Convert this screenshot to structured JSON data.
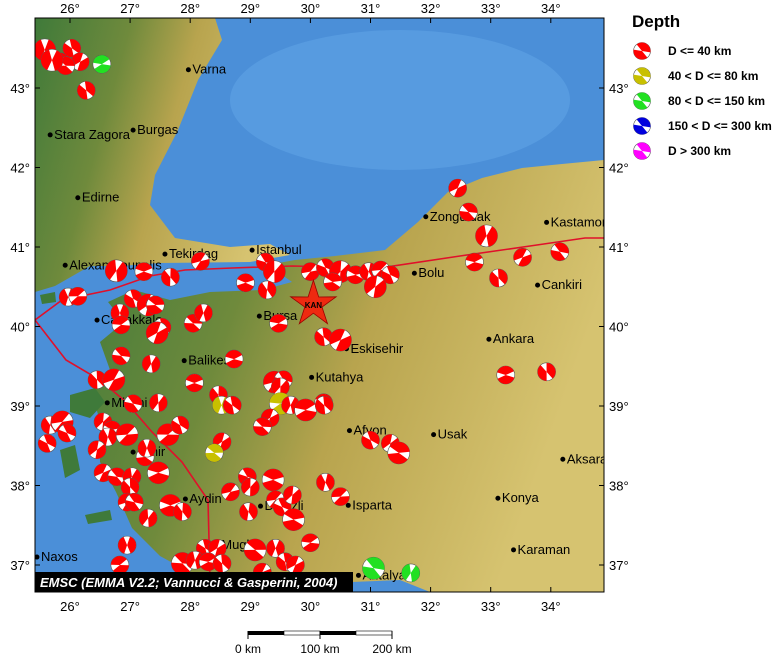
{
  "map": {
    "lon_ticks": [
      26,
      27,
      28,
      29,
      30,
      31,
      32,
      33,
      34
    ],
    "lat_ticks": [
      37,
      38,
      39,
      40,
      41,
      42,
      43
    ],
    "degree_symbol": "°",
    "credit": "EMSC (EMMA V2.2; Vannucci & Gasperini, 2004)",
    "epicenter": {
      "label": "KAN",
      "lon": 30.05,
      "lat": 40.28
    },
    "colors": {
      "sea": "#4b8fd8",
      "land_low": "#3f7a3a",
      "land_high": "#c9b660",
      "fault": "#e0102a"
    },
    "cities": [
      {
        "name": "Varna",
        "lon": 27.97,
        "lat": 43.23
      },
      {
        "name": "Burgas",
        "lon": 27.05,
        "lat": 42.47
      },
      {
        "name": "Stara Zagora",
        "lon": 25.67,
        "lat": 42.41
      },
      {
        "name": "Edirne",
        "lon": 26.13,
        "lat": 41.62
      },
      {
        "name": "Tekirdag",
        "lon": 27.58,
        "lat": 40.91
      },
      {
        "name": "Istanbul",
        "lon": 29.03,
        "lat": 40.96
      },
      {
        "name": "Alexandroupolis",
        "lon": 25.92,
        "lat": 40.77
      },
      {
        "name": "Canakkale",
        "lon": 26.45,
        "lat": 40.08
      },
      {
        "name": "Bursa",
        "lon": 29.15,
        "lat": 40.13
      },
      {
        "name": "Balikesir",
        "lon": 27.9,
        "lat": 39.57
      },
      {
        "name": "Kutahya",
        "lon": 30.02,
        "lat": 39.36
      },
      {
        "name": "Eskisehir",
        "lon": 30.6,
        "lat": 39.72
      },
      {
        "name": "Bolu",
        "lon": 31.73,
        "lat": 40.67
      },
      {
        "name": "Zonguldak",
        "lon": 31.92,
        "lat": 41.38
      },
      {
        "name": "Kastamonu",
        "lon": 33.93,
        "lat": 41.31
      },
      {
        "name": "Cankiri",
        "lon": 33.78,
        "lat": 40.52
      },
      {
        "name": "Ankara",
        "lon": 32.97,
        "lat": 39.84
      },
      {
        "name": "Mitilini",
        "lon": 26.62,
        "lat": 39.04
      },
      {
        "name": "Izmir",
        "lon": 27.05,
        "lat": 38.42
      },
      {
        "name": "Afyon",
        "lon": 30.65,
        "lat": 38.69
      },
      {
        "name": "Usak",
        "lon": 32.05,
        "lat": 38.64
      },
      {
        "name": "Konya",
        "lon": 33.12,
        "lat": 37.84
      },
      {
        "name": "Aksaray",
        "lon": 34.2,
        "lat": 38.33
      },
      {
        "name": "Aydin",
        "lon": 27.92,
        "lat": 37.83
      },
      {
        "name": "Denizli",
        "lon": 29.17,
        "lat": 37.74
      },
      {
        "name": "Isparta",
        "lon": 30.63,
        "lat": 37.75
      },
      {
        "name": "Mugla",
        "lon": 28.45,
        "lat": 37.25
      },
      {
        "name": "Karaman",
        "lon": 33.38,
        "lat": 37.19
      },
      {
        "name": "Antalya",
        "lon": 30.8,
        "lat": 36.87
      },
      {
        "name": "Naxos",
        "lon": 25.45,
        "lat": 37.1
      }
    ],
    "events": [
      [
        25.58,
        43.48,
        0
      ],
      [
        25.83,
        43.33,
        0
      ],
      [
        26.03,
        43.5,
        0
      ],
      [
        26.17,
        43.33,
        0
      ],
      [
        25.93,
        43.28,
        0
      ],
      [
        25.7,
        43.35,
        0
      ],
      [
        26.53,
        43.3,
        2
      ],
      [
        26.27,
        42.97,
        0
      ],
      [
        32.45,
        41.74,
        0
      ],
      [
        32.63,
        41.44,
        0
      ],
      [
        32.93,
        41.14,
        0
      ],
      [
        32.73,
        40.81,
        0
      ],
      [
        33.13,
        40.61,
        0
      ],
      [
        33.53,
        40.87,
        0
      ],
      [
        34.15,
        40.94,
        0
      ],
      [
        26.77,
        40.7,
        0
      ],
      [
        27.23,
        40.69,
        0
      ],
      [
        27.67,
        40.62,
        0
      ],
      [
        28.17,
        40.82,
        0
      ],
      [
        29.25,
        40.81,
        0
      ],
      [
        29.4,
        40.69,
        0
      ],
      [
        28.92,
        40.55,
        0
      ],
      [
        29.28,
        40.46,
        0
      ],
      [
        30.0,
        40.69,
        0
      ],
      [
        30.25,
        40.74,
        0
      ],
      [
        30.5,
        40.69,
        0
      ],
      [
        30.75,
        40.65,
        0
      ],
      [
        30.97,
        40.69,
        0
      ],
      [
        31.17,
        40.71,
        0
      ],
      [
        31.33,
        40.65,
        0
      ],
      [
        31.08,
        40.5,
        0
      ],
      [
        30.37,
        40.56,
        0
      ],
      [
        25.97,
        40.37,
        0
      ],
      [
        26.13,
        40.38,
        0
      ],
      [
        27.05,
        40.35,
        0
      ],
      [
        27.3,
        40.27,
        0
      ],
      [
        27.42,
        40.27,
        0
      ],
      [
        26.83,
        40.17,
        0
      ],
      [
        26.85,
        40.02,
        0
      ],
      [
        27.53,
        39.99,
        0
      ],
      [
        27.45,
        39.92,
        0
      ],
      [
        28.05,
        40.04,
        0
      ],
      [
        28.22,
        40.17,
        0
      ],
      [
        29.47,
        40.04,
        0
      ],
      [
        30.22,
        39.87,
        0
      ],
      [
        30.5,
        39.83,
        0
      ],
      [
        26.85,
        39.63,
        0
      ],
      [
        27.35,
        39.53,
        0
      ],
      [
        28.73,
        39.59,
        0
      ],
      [
        26.45,
        39.33,
        0
      ],
      [
        26.73,
        39.33,
        0
      ],
      [
        27.05,
        39.03,
        0
      ],
      [
        27.47,
        39.04,
        0
      ],
      [
        28.07,
        39.29,
        0
      ],
      [
        28.47,
        39.14,
        0
      ],
      [
        29.4,
        39.3,
        0
      ],
      [
        29.55,
        39.33,
        0
      ],
      [
        29.5,
        39.24,
        0
      ],
      [
        30.22,
        39.04,
        0
      ],
      [
        25.67,
        38.76,
        0
      ],
      [
        25.87,
        38.8,
        0
      ],
      [
        25.95,
        38.66,
        0
      ],
      [
        26.55,
        38.8,
        0
      ],
      [
        26.7,
        38.7,
        0
      ],
      [
        26.63,
        38.61,
        0
      ],
      [
        26.95,
        38.64,
        0
      ],
      [
        25.62,
        38.53,
        0
      ],
      [
        26.45,
        38.45,
        0
      ],
      [
        27.25,
        38.36,
        0
      ],
      [
        27.28,
        38.47,
        0
      ],
      [
        27.63,
        38.64,
        0
      ],
      [
        27.83,
        38.76,
        0
      ],
      [
        28.53,
        38.55,
        0
      ],
      [
        28.4,
        38.41,
        1
      ],
      [
        28.52,
        39.01,
        1
      ],
      [
        29.5,
        39.03,
        1
      ],
      [
        28.7,
        39.01,
        0
      ],
      [
        29.33,
        38.85,
        0
      ],
      [
        29.2,
        38.74,
        0
      ],
      [
        29.67,
        39.01,
        0
      ],
      [
        29.92,
        38.95,
        0
      ],
      [
        30.23,
        39.01,
        0
      ],
      [
        26.55,
        38.16,
        0
      ],
      [
        26.78,
        38.11,
        0
      ],
      [
        27.03,
        38.11,
        0
      ],
      [
        27.47,
        38.16,
        0
      ],
      [
        27.0,
        37.98,
        0
      ],
      [
        26.95,
        37.79,
        0
      ],
      [
        27.07,
        37.79,
        0
      ],
      [
        27.3,
        37.59,
        0
      ],
      [
        27.67,
        37.75,
        0
      ],
      [
        27.87,
        37.67,
        0
      ],
      [
        28.67,
        37.92,
        0
      ],
      [
        28.95,
        38.11,
        0
      ],
      [
        29.0,
        37.98,
        0
      ],
      [
        29.38,
        38.07,
        0
      ],
      [
        28.97,
        37.67,
        0
      ],
      [
        29.42,
        37.82,
        0
      ],
      [
        29.53,
        37.73,
        0
      ],
      [
        29.7,
        37.88,
        0
      ],
      [
        29.72,
        37.57,
        0
      ],
      [
        30.25,
        38.04,
        0
      ],
      [
        30.5,
        37.86,
        0
      ],
      [
        31.0,
        38.57,
        0
      ],
      [
        31.33,
        38.53,
        0
      ],
      [
        31.47,
        38.41,
        0
      ],
      [
        26.95,
        37.25,
        0
      ],
      [
        26.83,
        37.0,
        0
      ],
      [
        28.25,
        37.21,
        0
      ],
      [
        28.45,
        37.21,
        0
      ],
      [
        29.08,
        37.19,
        0
      ],
      [
        29.42,
        37.21,
        0
      ],
      [
        30.0,
        37.28,
        0
      ],
      [
        29.58,
        37.04,
        0
      ],
      [
        29.75,
        37.0,
        0
      ],
      [
        27.87,
        37.02,
        0
      ],
      [
        28.08,
        37.06,
        0
      ],
      [
        28.3,
        37.04,
        0
      ],
      [
        28.53,
        37.02,
        0
      ],
      [
        29.2,
        36.91,
        0
      ],
      [
        31.05,
        36.96,
        2
      ],
      [
        31.67,
        36.9,
        2
      ],
      [
        33.25,
        39.39,
        0
      ],
      [
        33.93,
        39.43,
        0
      ]
    ]
  },
  "legend": {
    "title": "Depth",
    "items": [
      {
        "label": "D <= 40 km",
        "color": "#ff0000"
      },
      {
        "label": "40 < D <= 80 km",
        "color": "#c8c000"
      },
      {
        "label": "80 < D <= 150 km",
        "color": "#22e022"
      },
      {
        "label": "150 < D <= 300 km",
        "color": "#0000dd"
      },
      {
        "label": "D > 300 km",
        "color": "#ff00ff"
      }
    ]
  },
  "scale_bar": {
    "labels": [
      "0 km",
      "100 km",
      "200 km"
    ]
  }
}
